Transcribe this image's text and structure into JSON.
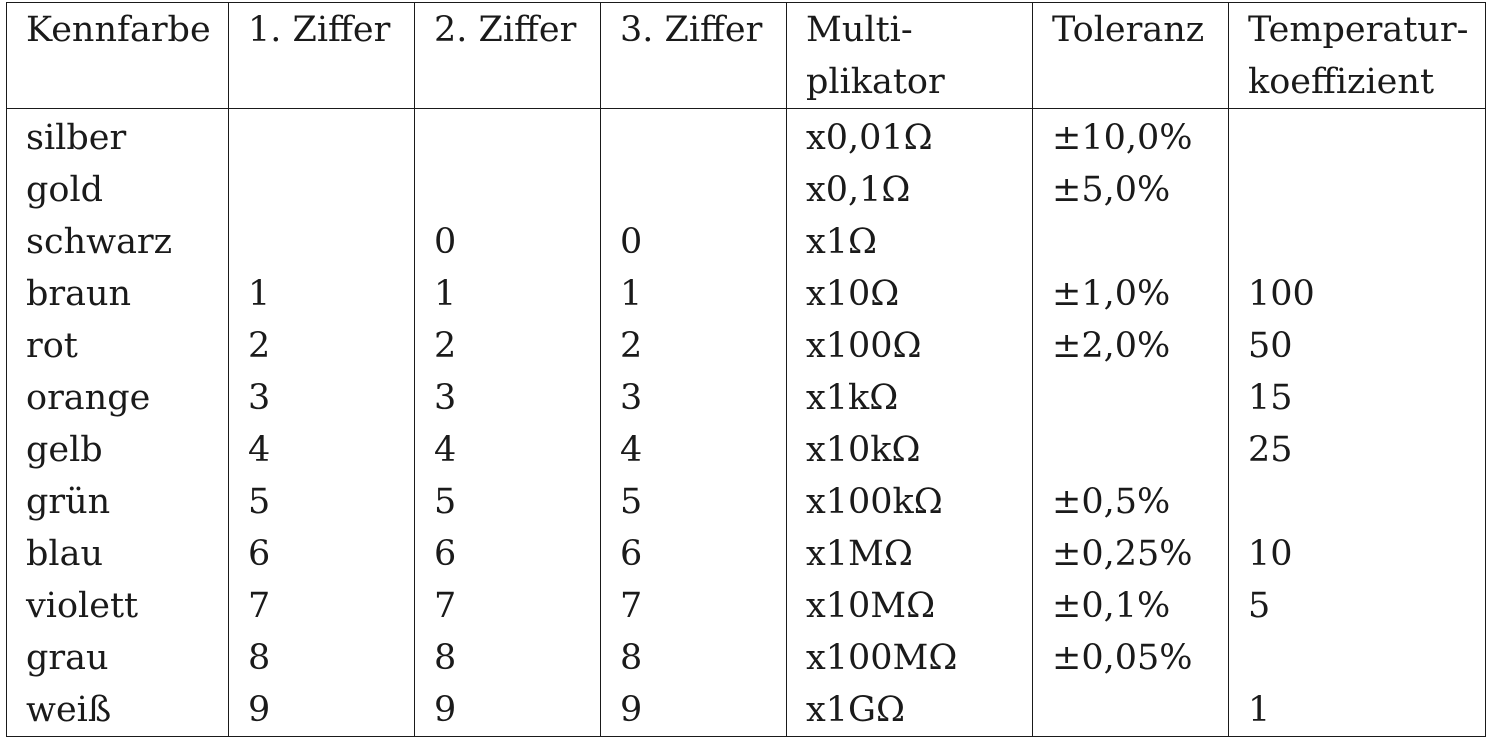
{
  "table": {
    "headers": [
      {
        "lines": [
          "Kennfarbe"
        ]
      },
      {
        "lines": [
          "1. Ziffer"
        ]
      },
      {
        "lines": [
          "2. Ziffer"
        ]
      },
      {
        "lines": [
          "3. Ziffer"
        ]
      },
      {
        "lines": [
          "Multi-",
          "plikator"
        ]
      },
      {
        "lines": [
          "Toleranz"
        ]
      },
      {
        "lines": [
          "Temperatur-",
          "koeffizient"
        ]
      }
    ],
    "rows": [
      [
        "silber",
        "",
        "",
        "",
        "x0,01Ω",
        "±10,0%",
        ""
      ],
      [
        "gold",
        "",
        "",
        "",
        "x0,1Ω",
        "±5,0%",
        ""
      ],
      [
        "schwarz",
        "",
        "0",
        "0",
        "x1Ω",
        "",
        ""
      ],
      [
        "braun",
        "1",
        "1",
        "1",
        "x10Ω",
        "±1,0%",
        "100"
      ],
      [
        "rot",
        "2",
        "2",
        "2",
        "x100Ω",
        "±2,0%",
        "50"
      ],
      [
        "orange",
        "3",
        "3",
        "3",
        "x1kΩ",
        "",
        "15"
      ],
      [
        "gelb",
        "4",
        "4",
        "4",
        "x10kΩ",
        "",
        "25"
      ],
      [
        "grün",
        "5",
        "5",
        "5",
        "x100kΩ",
        "±0,5%",
        ""
      ],
      [
        "blau",
        "6",
        "6",
        "6",
        "x1MΩ",
        "±0,25%",
        "10"
      ],
      [
        "violett",
        "7",
        "7",
        "7",
        "x10MΩ",
        "±0,1%",
        "5"
      ],
      [
        "grau",
        "8",
        "8",
        "8",
        "x100MΩ",
        "±0,05%",
        ""
      ],
      [
        "weiß",
        "9",
        "9",
        "9",
        "x1GΩ",
        "",
        "1"
      ]
    ]
  }
}
